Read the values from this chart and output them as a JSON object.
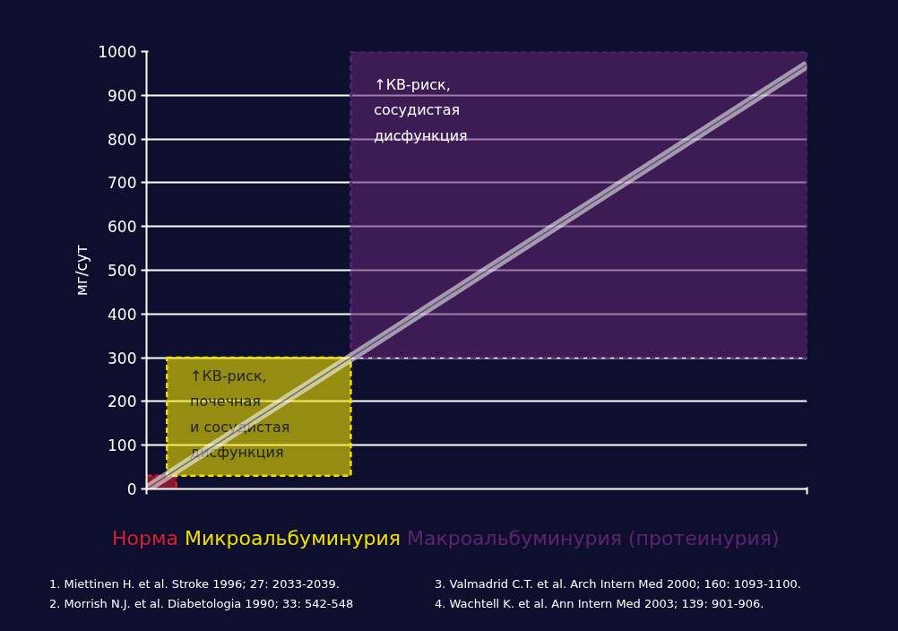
{
  "chart_data": {
    "type": "line",
    "ylabel": "мг/сут",
    "categories": [
      null,
      null,
      null,
      null,
      null,
      null,
      null,
      null,
      null,
      null,
      null
    ],
    "series": [
      {
        "color": "#ffffff",
        "values": [
          0,
          97,
          194,
          291,
          388,
          485,
          582,
          679,
          776,
          873,
          970
        ]
      }
    ],
    "ylim": [
      0,
      1000
    ],
    "yticks": [
      0,
      100,
      200,
      300,
      400,
      500,
      600,
      700,
      800,
      900,
      1000
    ],
    "grid": "y",
    "tick_labels": "y",
    "line_style": "solid",
    "marker": "none",
    "bands": [
      {
        "axis": "y",
        "from": 0,
        "to": 30,
        "label": "Норма",
        "color": "#d42030"
      },
      {
        "axis": "y",
        "from": 30,
        "to": 300,
        "label": "Микроальбуминурия",
        "color": "#f0e000"
      },
      {
        "axis": "y",
        "from": 300,
        "to": 1000,
        "label": "Макроальбуминурия (протеинурия)",
        "color": "#5e2470"
      }
    ],
    "annotations": [
      "↑КВ-риск,\nпочечная\nи сосудистая\nдисфункция",
      "↑КВ-риск,\nсосудистая\nдисфункция",
      "1. Miettinen H. et al. Stroke 1996; 27: 2033-2039.",
      "2. Morrish N.J. et al. Diabetologia 1990; 33: 542-548",
      "3. Valmadrid C.T. et al. Arch Intern Med 2000; 160: 1093-1100.",
      "4. Wachtell K. et al. Ann Intern Med 2003; 139: 901-906."
    ]
  }
}
